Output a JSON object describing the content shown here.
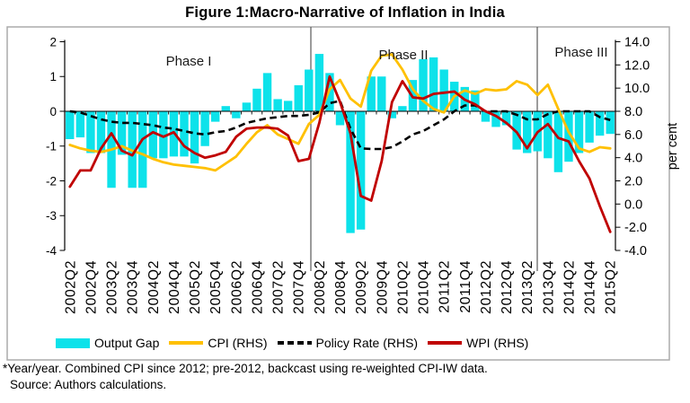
{
  "title": "Figure 1:Macro-Narrative of Inflation in India",
  "footnote_line1": "*Year/year. Combined CPI since 2012; pre-2012, backcast using re-weighted CPI-IW data.",
  "footnote_line2": "Source: Authors calculations.",
  "colors": {
    "output_gap": "#0de2ea",
    "cpi": "#ffc000",
    "policy_rate": "#000000",
    "wpi": "#c00000",
    "frame": "#ababab",
    "divider": "#595959"
  },
  "chart_data": {
    "type": "bar",
    "subtype": "combo bar+line, dual axis",
    "title": "Figure 1:Macro-Narrative of Inflation in India",
    "x": [
      "2002Q2",
      "2002Q3",
      "2002Q4",
      "2003Q1",
      "2003Q2",
      "2003Q3",
      "2003Q4",
      "2004Q1",
      "2004Q2",
      "2004Q3",
      "2004Q4",
      "2005Q1",
      "2005Q2",
      "2005Q3",
      "2005Q4",
      "2006Q1",
      "2006Q2",
      "2006Q3",
      "2006Q4",
      "2007Q1",
      "2007Q2",
      "2007Q3",
      "2007Q4",
      "2008Q1",
      "2008Q2",
      "2008Q3",
      "2008Q4",
      "2009Q1",
      "2009Q2",
      "2009Q3",
      "2009Q4",
      "2010Q1",
      "2010Q2",
      "2010Q3",
      "2010Q4",
      "2011Q1",
      "2011Q2",
      "2011Q3",
      "2011Q4",
      "2012Q1",
      "2012Q2",
      "2012Q3",
      "2012Q4",
      "2013Q1",
      "2013Q2",
      "2013Q3",
      "2013Q4",
      "2014Q1",
      "2014Q2",
      "2014Q3",
      "2014Q4",
      "2015Q1",
      "2015Q2"
    ],
    "x_tick_labels": [
      "2002Q2",
      "2002Q4",
      "2003Q2",
      "2003Q4",
      "2004Q2",
      "2004Q4",
      "2005Q2",
      "2005Q4",
      "2006Q2",
      "2006Q4",
      "2007Q2",
      "2007Q4",
      "2008Q2",
      "2008Q4",
      "2009Q2",
      "2009Q4",
      "2010Q2",
      "2010Q4",
      "2011Q2",
      "2011Q4",
      "2012Q2",
      "2012Q4",
      "2013Q2",
      "2013Q4",
      "2014Q2",
      "2014Q4",
      "2015Q2"
    ],
    "x_tick_every": 2,
    "left_axis": {
      "range": [
        -4,
        2
      ],
      "ticks": [
        "2",
        "1",
        "0",
        "-1",
        "-2",
        "-3",
        "-4"
      ]
    },
    "right_axis": {
      "range": [
        -4,
        14
      ],
      "label": "per cent",
      "ticks": [
        "14.0",
        "12.0",
        "10.0",
        "8.0",
        "6.0",
        "4.0",
        "2.0",
        "0.0",
        "-2.0",
        "-4.0"
      ]
    },
    "grid": false,
    "legend_position": "bottom",
    "phases": [
      {
        "label": "Phase I"
      },
      {
        "label": "Phase II"
      },
      {
        "label": "Phase III"
      }
    ],
    "phase_dividers_after": [
      "2008Q1",
      "2013Q3"
    ],
    "series": [
      {
        "name": "Output Gap",
        "type": "bar",
        "axis": "left",
        "color": "#0de2ea",
        "values": [
          -0.8,
          -0.75,
          -1.2,
          -1.2,
          -2.2,
          -1.25,
          -2.2,
          -2.2,
          -1.35,
          -1.35,
          -1.3,
          -1.3,
          -1.5,
          -1.0,
          -0.3,
          0.15,
          -0.2,
          0.25,
          0.65,
          1.1,
          0.35,
          0.3,
          0.75,
          1.2,
          1.65,
          1.1,
          -0.4,
          -3.5,
          -3.4,
          1.0,
          1.0,
          -0.2,
          0.15,
          0.9,
          1.5,
          1.55,
          1.2,
          0.85,
          0.7,
          0.6,
          -0.3,
          -0.45,
          -0.4,
          -1.1,
          -1.2,
          -1.15,
          -1.35,
          -1.75,
          -1.45,
          -1.2,
          -0.9,
          -0.7,
          -0.65
        ]
      },
      {
        "name": "CPI (RHS)",
        "type": "line",
        "axis": "right",
        "color": "#ffc000",
        "values": [
          5.1,
          4.8,
          4.6,
          4.5,
          4.7,
          5.0,
          4.6,
          4.3,
          3.9,
          3.6,
          3.4,
          3.3,
          3.2,
          3.1,
          2.9,
          3.5,
          4.1,
          5.2,
          6.2,
          6.8,
          6.0,
          5.6,
          5.2,
          6.9,
          7.7,
          9.9,
          10.7,
          9.1,
          8.4,
          11.5,
          12.8,
          12.9,
          11.6,
          9.9,
          8.9,
          8.2,
          7.9,
          9.3,
          9.8,
          9.5,
          9.9,
          9.8,
          9.9,
          10.6,
          10.3,
          9.4,
          10.3,
          8.2,
          6.2,
          4.8,
          4.5,
          4.9,
          4.8
        ]
      },
      {
        "name": "Policy Rate (RHS)",
        "type": "line",
        "dashed": true,
        "axis": "right",
        "color": "#000000",
        "values": [
          8.0,
          7.9,
          7.6,
          7.3,
          7.1,
          7.0,
          7.0,
          6.9,
          6.8,
          6.6,
          6.5,
          6.3,
          6.1,
          6.0,
          6.2,
          6.3,
          6.6,
          7.0,
          7.2,
          7.4,
          7.5,
          7.6,
          7.6,
          7.7,
          7.9,
          8.7,
          8.9,
          6.5,
          4.8,
          4.75,
          4.75,
          4.9,
          5.4,
          6.0,
          6.3,
          6.8,
          7.3,
          8.0,
          8.5,
          8.5,
          8.0,
          8.0,
          8.0,
          7.7,
          7.3,
          7.3,
          7.75,
          8.0,
          8.0,
          8.0,
          8.0,
          7.5,
          7.25
        ]
      },
      {
        "name": "WPI (RHS)",
        "type": "line",
        "axis": "right",
        "color": "#c00000",
        "values": [
          1.5,
          2.9,
          2.9,
          4.8,
          6.1,
          4.6,
          4.2,
          5.6,
          6.2,
          5.8,
          6.2,
          5.0,
          4.4,
          4.0,
          4.2,
          4.5,
          5.8,
          6.5,
          6.6,
          6.6,
          6.5,
          5.9,
          3.7,
          3.9,
          7.0,
          11.0,
          8.8,
          6.1,
          0.7,
          0.3,
          3.7,
          8.8,
          10.6,
          9.2,
          9.1,
          9.5,
          9.6,
          9.7,
          9.0,
          8.6,
          8.0,
          7.6,
          7.0,
          6.2,
          4.8,
          6.2,
          6.9,
          5.7,
          5.4,
          3.7,
          2.2,
          -0.2,
          -2.4
        ]
      }
    ],
    "legend": [
      "Output Gap",
      "CPI (RHS)",
      "Policy Rate (RHS)",
      "WPI (RHS)"
    ]
  }
}
